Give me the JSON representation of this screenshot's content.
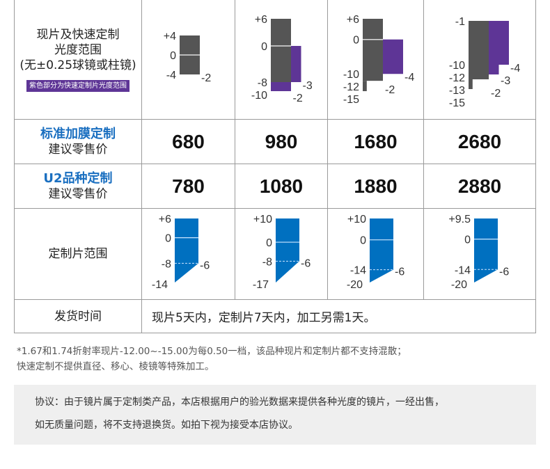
{
  "colors": {
    "gray": "#555555",
    "purple": "#5e3596",
    "blue": "#0070c0",
    "label_blue": "#1a6fc0"
  },
  "rows": {
    "range": {
      "title_lines": [
        "现片及快速定制",
        "光度范围",
        "(无±0.25球镜或柱镜)"
      ],
      "badge": "紫色部分为快速定制片光度范围"
    },
    "standard": {
      "title": "标准加膜定制",
      "subtitle": "建议零售价",
      "prices": [
        "680",
        "980",
        "1680",
        "2680"
      ]
    },
    "u2": {
      "title": "U2品种定制",
      "subtitle": "建议零售价",
      "prices": [
        "780",
        "1080",
        "1880",
        "2880"
      ]
    },
    "custom": {
      "title": "定制片范围"
    },
    "shipping": {
      "title": "发货时间",
      "text": "现片5天内，定制片7天内，加工另需1天。"
    }
  },
  "chart_data": [
    {
      "type": "range-bars",
      "name": "stock-and-quick-custom-range",
      "charts": [
        {
          "left_labels": [
            {
              "text": "+4",
              "sph": 4
            },
            {
              "text": "0",
              "sph": 0
            },
            {
              "text": "-4",
              "sph": -4
            }
          ],
          "right_labels": [
            {
              "text": "-2",
              "sph": -4
            }
          ],
          "segments": [
            {
              "sph": [
                4,
                -4
              ],
              "cyl": [
                0,
                -2
              ],
              "kind": "stock"
            }
          ],
          "range": [
            4,
            -4
          ]
        },
        {
          "left_labels": [
            {
              "text": "+6",
              "sph": 6
            },
            {
              "text": "0",
              "sph": 0
            },
            {
              "text": "-8",
              "sph": -8
            },
            {
              "text": "-10",
              "sph": -10
            }
          ],
          "right_labels": [
            {
              "text": "-3",
              "sph": -8
            },
            {
              "text": "-2",
              "sph": -10
            }
          ],
          "segments": [
            {
              "sph": [
                6,
                -8
              ],
              "cyl": [
                0,
                -2
              ],
              "kind": "stock"
            },
            {
              "sph": [
                0,
                -8
              ],
              "cyl": [
                -2,
                -3
              ],
              "kind": "quick"
            },
            {
              "sph": [
                -8,
                -10
              ],
              "cyl": [
                0,
                -2
              ],
              "kind": "quick"
            }
          ],
          "range": [
            6,
            -10
          ]
        },
        {
          "left_labels": [
            {
              "text": "+6",
              "sph": 6
            },
            {
              "text": "0",
              "sph": 0
            },
            {
              "text": "-10",
              "sph": -10
            },
            {
              "text": "-12",
              "sph": -12
            },
            {
              "text": "-15",
              "sph": -14
            }
          ],
          "right_labels": [
            {
              "text": "-4",
              "sph": -10
            },
            {
              "text": "-2",
              "sph": -12
            }
          ],
          "segments": [
            {
              "sph": [
                6,
                -12
              ],
              "cyl": [
                0,
                -2
              ],
              "kind": "stock"
            },
            {
              "sph": [
                -12,
                -15
              ],
              "cyl": [
                0,
                -0.4
              ],
              "kind": "stock"
            },
            {
              "sph": [
                0,
                -10
              ],
              "cyl": [
                -2,
                -4
              ],
              "kind": "quick"
            }
          ],
          "range": [
            6,
            -15
          ]
        },
        {
          "left_labels": [
            {
              "text": "-1",
              "sph": -1
            },
            {
              "text": "-10",
              "sph": -10
            },
            {
              "text": "-12",
              "sph": -11.8
            },
            {
              "text": "-13",
              "sph": -13.4
            },
            {
              "text": "-15",
              "sph": -15
            }
          ],
          "right_labels": [
            {
              "text": "-4",
              "sph": -10
            },
            {
              "text": "-3",
              "sph": -11.2
            },
            {
              "text": "-2",
              "sph": -12.5
            }
          ],
          "segments": [
            {
              "sph": [
                -1,
                -13
              ],
              "cyl": [
                0,
                -2
              ],
              "kind": "stock"
            },
            {
              "sph": [
                -13,
                -15
              ],
              "cyl": [
                0,
                -0.4
              ],
              "kind": "stock"
            },
            {
              "sph": [
                -1,
                -10
              ],
              "cyl": [
                -2,
                -4
              ],
              "kind": "quick"
            },
            {
              "sph": [
                -10,
                -12
              ],
              "cyl": [
                -2,
                -3
              ],
              "kind": "quick"
            }
          ],
          "range": [
            -1,
            -15
          ]
        }
      ]
    },
    {
      "type": "range-bars",
      "name": "custom-lens-range",
      "charts": [
        {
          "max": "+6",
          "zero": "0",
          "mid": "-8",
          "min": "-14",
          "cyl": "-6",
          "v": [
            6,
            -8,
            -14
          ]
        },
        {
          "max": "+10",
          "zero": "0",
          "mid": "-8",
          "min": "-17",
          "cyl": "-6",
          "v": [
            10,
            -8,
            -17
          ]
        },
        {
          "max": "+10",
          "zero": "0",
          "mid": "-14",
          "min": "-20",
          "cyl": "-6",
          "v": [
            10,
            -14,
            -20
          ]
        },
        {
          "max": "+9.5",
          "zero": "0",
          "mid": "-14",
          "min": "-20",
          "cyl": "-6",
          "v": [
            9.5,
            -14,
            -20
          ]
        }
      ]
    }
  ],
  "footnote": {
    "line1": "*1.67和1.74折射率现片-12.00~-15.00为每0.50一档，该品种现片和定制片都不支持混散；",
    "line2": "快速定制不提供直径、移心、棱镜等特殊加工。"
  },
  "agreement": {
    "line1": "协议：由于镜片属于定制类产品，本店根据用户的验光数据来提供各种光度的镜片，一经出售，",
    "line2": "如无质量问题，将不支持退换货。如拍下视为接受本店协议。"
  }
}
